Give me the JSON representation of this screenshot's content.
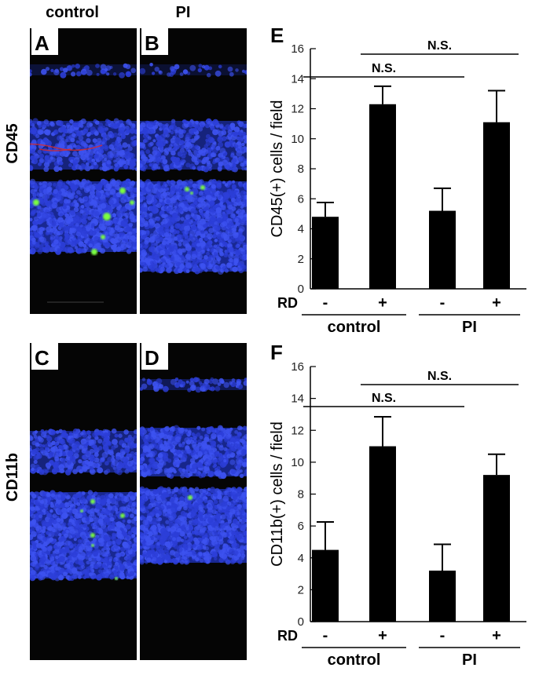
{
  "micrographs": {
    "column_headers": [
      "control",
      "PI"
    ],
    "row_labels": [
      "CD45",
      "CD11b"
    ],
    "panels": [
      {
        "letter": "A"
      },
      {
        "letter": "B"
      },
      {
        "letter": "C"
      },
      {
        "letter": "D"
      }
    ],
    "colors": {
      "nuclei": "#2c3ed8",
      "cells": "#7cff3c",
      "vessels": "#d92a2a",
      "background": "#050505"
    }
  },
  "chart_data": [
    {
      "type": "bar",
      "panel": "E",
      "ylabel": "CD45(+) cells / field",
      "ylim": [
        0,
        16
      ],
      "yticks": [
        0,
        2,
        4,
        6,
        8,
        10,
        12,
        14,
        16
      ],
      "row_label": "RD",
      "categories": [
        "-",
        "+",
        "-",
        "+"
      ],
      "groups": [
        "control",
        "PI"
      ],
      "values": [
        4.8,
        12.3,
        5.2,
        11.1
      ],
      "errors": [
        0.95,
        1.2,
        1.5,
        2.1
      ],
      "annotations": [
        {
          "text": "N.S.",
          "from": 0,
          "to": 2
        },
        {
          "text": "N.S.",
          "from": 1,
          "to": 3
        }
      ]
    },
    {
      "type": "bar",
      "panel": "F",
      "ylabel": "CD11b(+) cells / field",
      "ylim": [
        0,
        16
      ],
      "yticks": [
        0,
        2,
        4,
        6,
        8,
        10,
        12,
        14,
        16
      ],
      "row_label": "RD",
      "categories": [
        "-",
        "+",
        "-",
        "+"
      ],
      "groups": [
        "control",
        "PI"
      ],
      "values": [
        4.5,
        11.0,
        3.2,
        9.2
      ],
      "errors": [
        1.75,
        1.85,
        1.65,
        1.3
      ],
      "annotations": [
        {
          "text": "N.S.",
          "from": 0,
          "to": 2
        },
        {
          "text": "N.S.",
          "from": 1,
          "to": 3
        }
      ]
    }
  ]
}
